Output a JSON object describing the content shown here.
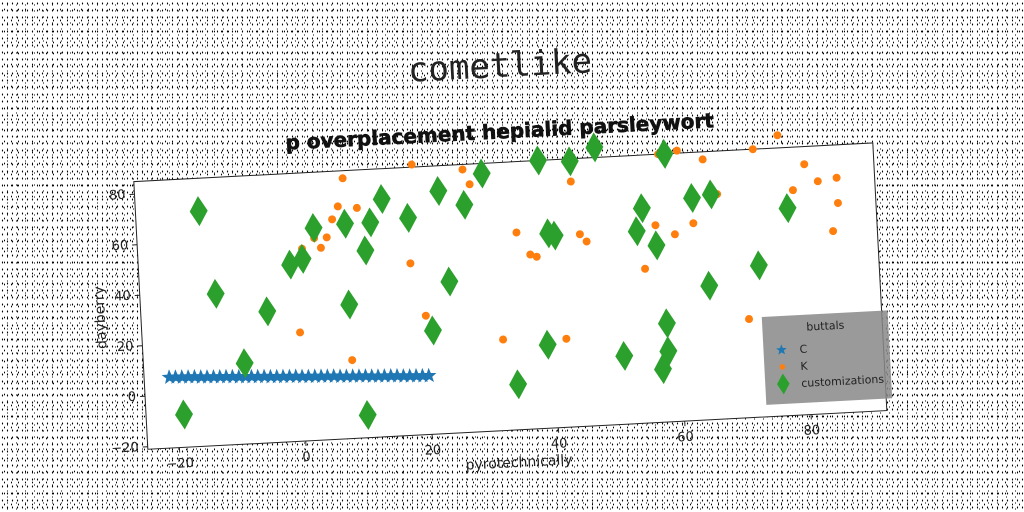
{
  "suptitle": "cometlike",
  "chart_data": {
    "type": "scatter",
    "title": "p overplacement hepialid parsleywort",
    "xlabel": "pyrotechnically",
    "ylabel": "dayberry",
    "xlim": [
      -25,
      92
    ],
    "ylim": [
      -21,
      85
    ],
    "xticks": [
      -20,
      0,
      20,
      40,
      60,
      80
    ],
    "yticks": [
      -20,
      0,
      20,
      40,
      60,
      80
    ],
    "grid": false,
    "legend": {
      "title": "buttals",
      "placement": "lower-right",
      "entries": [
        "C",
        "K",
        "customizations"
      ]
    },
    "series": [
      {
        "name": "C",
        "marker": "star",
        "color": "#1f77b4",
        "x": [
          -21,
          -20,
          -19,
          -18,
          -17,
          -16,
          -15,
          -14,
          -13,
          -12,
          -11,
          -10,
          -9,
          -8,
          -7,
          -6,
          -5,
          -4,
          -3,
          -2,
          -1,
          0,
          1,
          2,
          3,
          4,
          5,
          6,
          7,
          8,
          9,
          10,
          11,
          12,
          13,
          14,
          15,
          16,
          17,
          18,
          19,
          20
        ],
        "y": [
          7,
          6.9,
          6.8,
          6.7,
          6.6,
          6.4,
          6.3,
          6.2,
          6.1,
          6,
          5.9,
          5.7,
          5.6,
          5.5,
          5.4,
          5.3,
          5.1,
          5,
          4.9,
          4.8,
          4.7,
          4.5,
          4.4,
          4.3,
          4.2,
          4.1,
          4,
          3.8,
          3.7,
          3.6,
          3.5,
          3.4,
          3.2,
          3.1,
          3,
          2.9,
          2.8,
          2.6,
          2.5,
          2.4,
          2.3,
          2.2
        ]
      },
      {
        "name": "K",
        "marker": "circle",
        "color": "#ff7f0e",
        "x": [
          0,
          1,
          1,
          3,
          4,
          5,
          6,
          7,
          8,
          8,
          10,
          18,
          19,
          20,
          27,
          28,
          32,
          35,
          37,
          38,
          42,
          44,
          45,
          46,
          55,
          57,
          58,
          60,
          61,
          63,
          65,
          67,
          71,
          73,
          77,
          79,
          81,
          83,
          85,
          86,
          86
        ],
        "y": [
          22,
          51,
          55,
          59,
          55,
          59,
          66,
          71,
          10,
          82,
          70,
          47,
          86,
          26,
          83,
          77,
          15,
          57,
          48,
          47,
          14,
          76,
          55,
          52,
          40,
          57,
          85,
          53,
          86,
          57,
          82,
          68,
          18,
          85,
          90,
          68,
          78,
          71,
          51,
          72,
          62
        ]
      },
      {
        "name": "customizations",
        "marker": "diamond",
        "color": "#2ca02c",
        "x": [
          -19,
          -15,
          -13,
          -9,
          -5,
          -1,
          1,
          3,
          8,
          8,
          10,
          11,
          12,
          14,
          18,
          21,
          23,
          24,
          27,
          30,
          34,
          39,
          39,
          40,
          41,
          44,
          48,
          51,
          54,
          55,
          57,
          57,
          58,
          58,
          59,
          63,
          65,
          66,
          73,
          78
        ],
        "y": [
          -8,
          72,
          39,
          11,
          31,
          49,
          51,
          63,
          32,
          64,
          -12,
          53,
          64,
          73,
          65,
          20,
          75,
          39,
          69,
          81,
          -3,
          85,
          12,
          56,
          55,
          84,
          89,
          6,
          55,
          64,
          49,
          0,
          18,
          7,
          85,
          67,
          32,
          68,
          39,
          61
        ]
      }
    ]
  }
}
